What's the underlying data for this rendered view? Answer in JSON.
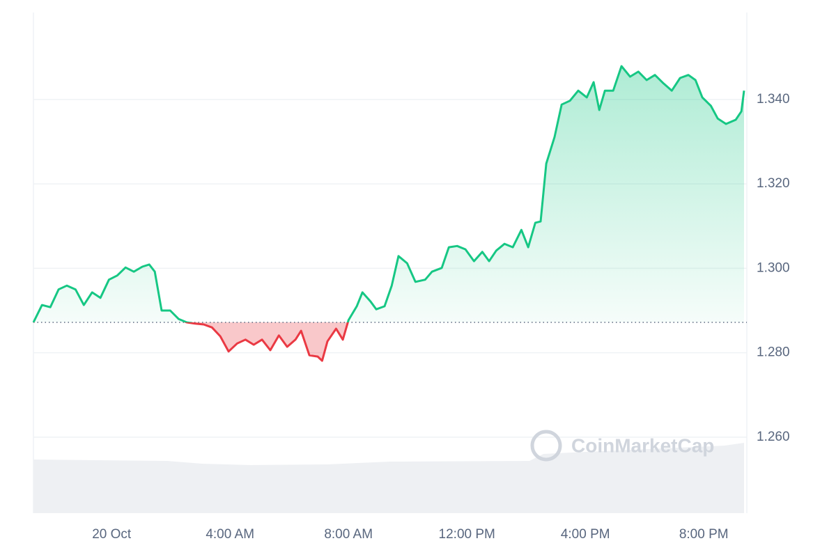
{
  "chart_data": {
    "type": "line",
    "watermark": "CoinMarketCap",
    "x": [
      -2.64,
      -2.35,
      -2.07,
      -1.79,
      -1.51,
      -1.22,
      -0.94,
      -0.66,
      -0.38,
      -0.09,
      0.19,
      0.47,
      0.75,
      1.04,
      1.27,
      1.46,
      1.69,
      1.98,
      2.26,
      2.54,
      2.82,
      3.11,
      3.39,
      3.67,
      3.95,
      4.24,
      4.52,
      4.8,
      5.08,
      5.36,
      5.65,
      5.93,
      6.21,
      6.4,
      6.68,
      6.96,
      7.11,
      7.29,
      7.58,
      7.81,
      8.0,
      8.28,
      8.47,
      8.75,
      8.94,
      9.22,
      9.46,
      9.69,
      9.98,
      10.26,
      10.59,
      10.82,
      11.15,
      11.39,
      11.67,
      11.95,
      12.24,
      12.52,
      12.75,
      12.99,
      13.27,
      13.55,
      13.84,
      14.07,
      14.31,
      14.49,
      14.68,
      14.96,
      15.2,
      15.48,
      15.76,
      16.05,
      16.28,
      16.47,
      16.66,
      16.94,
      17.22,
      17.51,
      17.79,
      18.07,
      18.35,
      18.64,
      18.92,
      19.2,
      19.48,
      19.72,
      19.95,
      20.24,
      20.47,
      20.75,
      21.08,
      21.27,
      21.36
    ],
    "series": [
      {
        "name": "Price",
        "color": "#16c784",
        "color_below": "#ea3943",
        "values": [
          1.2872,
          1.2913,
          1.2908,
          1.295,
          1.2959,
          1.295,
          1.2913,
          1.2943,
          1.293,
          1.2973,
          1.2983,
          1.3002,
          1.2992,
          1.3004,
          1.3009,
          1.2992,
          1.29,
          1.29,
          1.288,
          1.2872,
          1.2869,
          1.2867,
          1.286,
          1.2839,
          1.2803,
          1.2822,
          1.2831,
          1.2819,
          1.2831,
          1.2806,
          1.2841,
          1.2814,
          1.2831,
          1.2852,
          1.2794,
          1.2791,
          1.2781,
          1.2827,
          1.2857,
          1.2831,
          1.2877,
          1.291,
          1.2943,
          1.2921,
          1.2903,
          1.291,
          1.2959,
          1.3029,
          1.3012,
          1.2968,
          1.2973,
          1.2992,
          1.3001,
          1.305,
          1.3053,
          1.3045,
          1.3017,
          1.3039,
          1.3017,
          1.3042,
          1.3058,
          1.305,
          1.3091,
          1.305,
          1.3108,
          1.3111,
          1.3248,
          1.3311,
          1.3388,
          1.3397,
          1.3421,
          1.3405,
          1.3441,
          1.3375,
          1.3421,
          1.3421,
          1.3479,
          1.3454,
          1.3466,
          1.3446,
          1.3458,
          1.3438,
          1.3421,
          1.3451,
          1.3458,
          1.3446,
          1.3405,
          1.3385,
          1.3355,
          1.3342,
          1.3352,
          1.3372,
          1.3421
        ]
      }
    ],
    "reference_line": 1.2872,
    "xlim": [
      -2.64,
      21.36
    ],
    "xticks": [
      {
        "value": 0,
        "label": "20 Oct"
      },
      {
        "value": 4,
        "label": "4:00 AM"
      },
      {
        "value": 8,
        "label": "8:00 AM"
      },
      {
        "value": 12,
        "label": "12:00 PM"
      },
      {
        "value": 16,
        "label": "4:00 PM"
      },
      {
        "value": 20,
        "label": "8:00 PM"
      }
    ],
    "ylim": [
      1.242,
      1.3606
    ],
    "yticks": [
      {
        "value": 1.26,
        "label": "1.260"
      },
      {
        "value": 1.28,
        "label": "1.280"
      },
      {
        "value": 1.3,
        "label": "1.300"
      },
      {
        "value": 1.32,
        "label": "1.320"
      },
      {
        "value": 1.34,
        "label": "1.340"
      }
    ],
    "grid": true
  }
}
